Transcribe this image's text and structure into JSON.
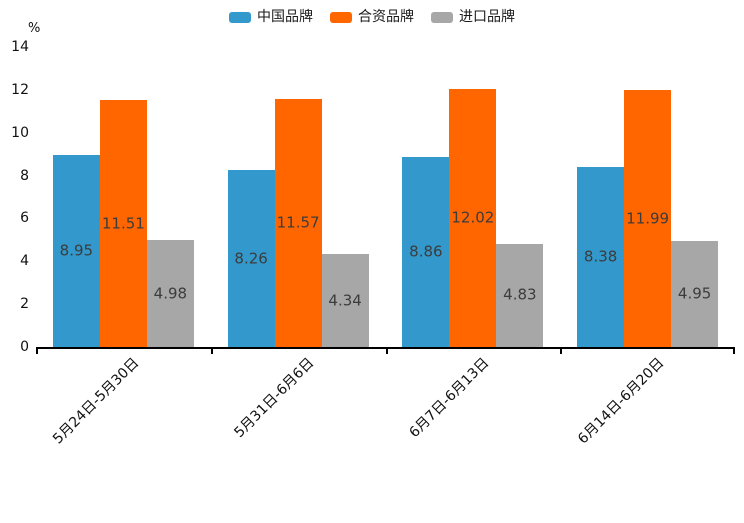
{
  "chart_data": {
    "type": "bar",
    "title": "",
    "categories": [
      "5月24日-5月30日",
      "5月31日-6月6日",
      "6月7日-6月13日",
      "6月14日-6月20日"
    ],
    "series": [
      {
        "name": "中国品牌",
        "color": "#3398CB",
        "values": [
          8.95,
          8.26,
          8.86,
          8.38
        ]
      },
      {
        "name": "合资品牌",
        "color": "#FF6600",
        "values": [
          11.51,
          11.57,
          12.02,
          11.99
        ]
      },
      {
        "name": "进口品牌",
        "color": "#A7A7A7",
        "values": [
          4.98,
          4.34,
          4.83,
          4.95
        ]
      }
    ],
    "ylabel": "%",
    "xlabel": "",
    "ylim": [
      0,
      14
    ],
    "yticks": [
      0,
      2,
      4,
      6,
      8,
      10,
      12,
      14
    ],
    "grid": false,
    "legend_position": "top",
    "value_labels_decimals": 2,
    "value_label_color": "#3c3c3c",
    "axis_color": "#000000",
    "x_tick_rotation_deg": 45
  }
}
